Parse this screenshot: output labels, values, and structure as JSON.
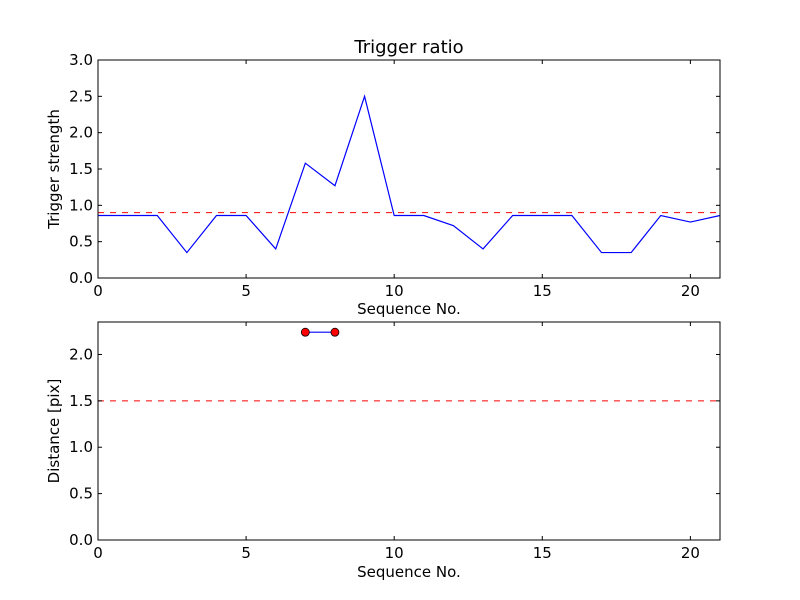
{
  "colors": {
    "series_line": "#0000ff",
    "threshold": "#ff0000",
    "marker_fill": "#ff0000",
    "axes": "#000000",
    "background": "#ffffff"
  },
  "chart_data": [
    {
      "type": "line",
      "title": "Trigger ratio",
      "xlabel": "Sequence No.",
      "ylabel": "Trigger strength",
      "xlim": [
        0,
        21
      ],
      "ylim": [
        0,
        3.0
      ],
      "x_ticks": [
        "0",
        "5",
        "10",
        "15",
        "20"
      ],
      "y_ticks": [
        "0.0",
        "0.5",
        "1.0",
        "1.5",
        "2.0",
        "2.5",
        "3.0"
      ],
      "grid": false,
      "series": [
        {
          "x": [
            0,
            1,
            2,
            3,
            4,
            5,
            6,
            7,
            8,
            9,
            10,
            11,
            12,
            13,
            14,
            15,
            16,
            17,
            18,
            19,
            20,
            21
          ],
          "values": [
            0.86,
            0.86,
            0.86,
            0.35,
            0.86,
            0.86,
            0.4,
            1.58,
            1.27,
            2.5,
            0.86,
            0.86,
            0.72,
            0.4,
            0.86,
            0.86,
            0.86,
            0.35,
            0.35,
            0.86,
            0.77,
            0.86
          ],
          "style": "solid",
          "color": "#0000ff"
        }
      ],
      "threshold": {
        "value": 0.9,
        "style": "dashed",
        "color": "#ff0000"
      }
    },
    {
      "type": "line",
      "title": "",
      "xlabel": "Sequence No.",
      "ylabel": "Distance [pix]",
      "xlim": [
        0,
        21
      ],
      "ylim": [
        0,
        2.35
      ],
      "x_ticks": [
        "0",
        "5",
        "10",
        "15",
        "20"
      ],
      "y_ticks": [
        "0.0",
        "0.5",
        "1.0",
        "1.5",
        "2.0"
      ],
      "grid": false,
      "series": [
        {
          "x": [
            7,
            8
          ],
          "values": [
            2.24,
            2.24
          ],
          "style": "solid",
          "marker": "circle",
          "color": "#0000ff"
        }
      ],
      "threshold": {
        "value": 1.5,
        "style": "dashed",
        "color": "#ff0000"
      }
    }
  ]
}
